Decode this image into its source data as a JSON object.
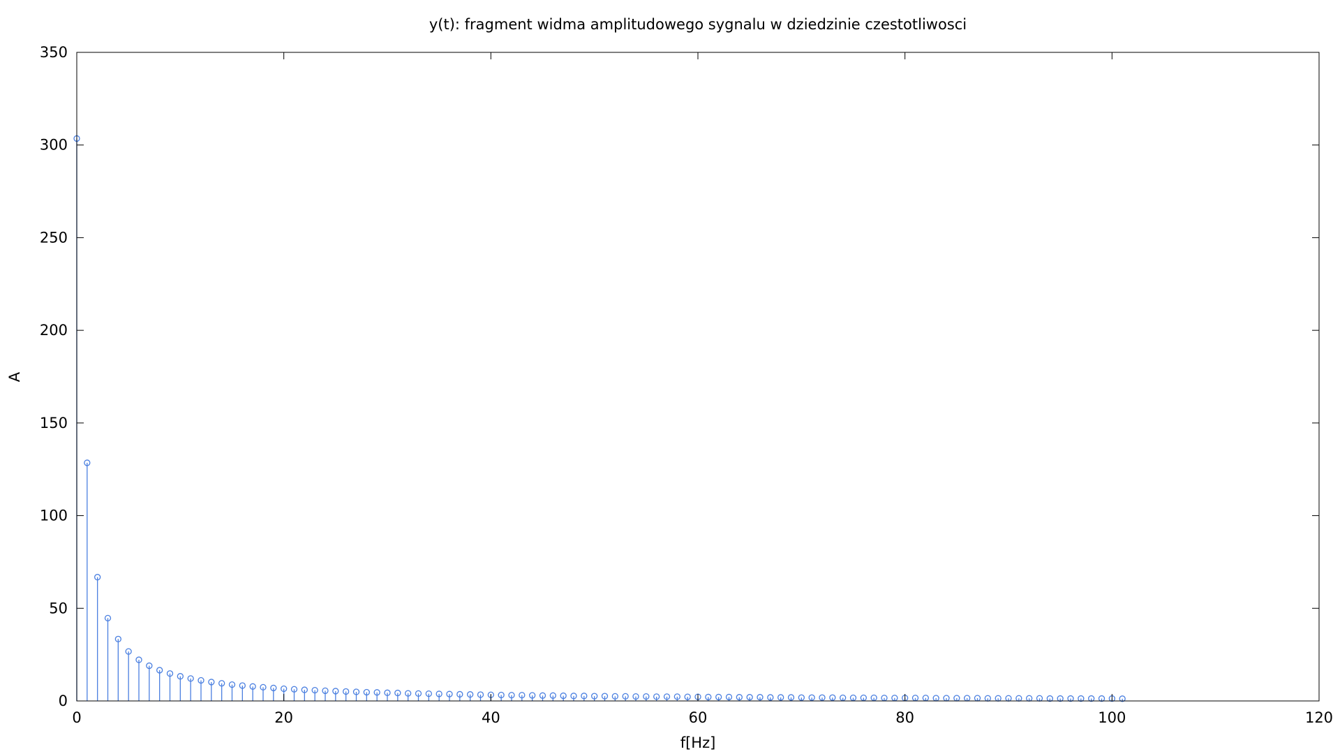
{
  "chart_data": {
    "type": "stem",
    "title": "y(t): fragment widma amplitudowego sygnalu w dziedzinie czestotliwosci",
    "xlabel": "f[Hz]",
    "ylabel": "A",
    "xlim": [
      0,
      120
    ],
    "ylim": [
      0,
      350
    ],
    "xticks": [
      "0",
      "20",
      "40",
      "60",
      "80",
      "100",
      "120"
    ],
    "yticks": [
      "0",
      "50",
      "100",
      "150",
      "200",
      "250",
      "300",
      "350"
    ],
    "grid": false,
    "legend": "none",
    "color": "#4a7fe0",
    "marker": "circle",
    "x": [
      0,
      1,
      2,
      3,
      4,
      5,
      6,
      7,
      8,
      9,
      10,
      11,
      12,
      13,
      14,
      15,
      16,
      17,
      18,
      19,
      20,
      21,
      22,
      23,
      24,
      25,
      26,
      27,
      28,
      29,
      30,
      31,
      32,
      33,
      34,
      35,
      36,
      37,
      38,
      39,
      40,
      41,
      42,
      43,
      44,
      45,
      46,
      47,
      48,
      49,
      50,
      51,
      52,
      53,
      54,
      55,
      56,
      57,
      58,
      59,
      60,
      61,
      62,
      63,
      64,
      65,
      66,
      67,
      68,
      69,
      70,
      71,
      72,
      73,
      74,
      75,
      76,
      77,
      78,
      79,
      80,
      81,
      82,
      83,
      84,
      85,
      86,
      87,
      88,
      89,
      90,
      91,
      92,
      93,
      94,
      95,
      96,
      97,
      98,
      99,
      100,
      101
    ],
    "y": [
      303.5,
      128.5,
      66.8,
      44.7,
      33.4,
      26.7,
      22.2,
      19.0,
      16.6,
      14.8,
      13.3,
      12.1,
      11.1,
      10.2,
      9.5,
      8.8,
      8.3,
      7.8,
      7.4,
      7.0,
      6.6,
      6.3,
      6.0,
      5.8,
      5.5,
      5.3,
      5.1,
      4.9,
      4.7,
      4.6,
      4.4,
      4.3,
      4.1,
      4.0,
      3.9,
      3.8,
      3.7,
      3.6,
      3.5,
      3.4,
      3.3,
      3.2,
      3.1,
      3.1,
      3.0,
      2.9,
      2.9,
      2.8,
      2.7,
      2.7,
      2.6,
      2.6,
      2.5,
      2.5,
      2.4,
      2.4,
      2.3,
      2.3,
      2.3,
      2.2,
      2.2,
      2.1,
      2.1,
      2.1,
      2.0,
      2.0,
      2.0,
      1.9,
      1.9,
      1.9,
      1.8,
      1.8,
      1.8,
      1.8,
      1.7,
      1.7,
      1.7,
      1.7,
      1.6,
      1.6,
      1.6,
      1.6,
      1.6,
      1.5,
      1.5,
      1.5,
      1.5,
      1.5,
      1.4,
      1.4,
      1.4,
      1.4,
      1.4,
      1.4,
      1.3,
      1.3,
      1.3,
      1.3,
      1.3,
      1.3,
      1.3,
      1.2
    ]
  }
}
